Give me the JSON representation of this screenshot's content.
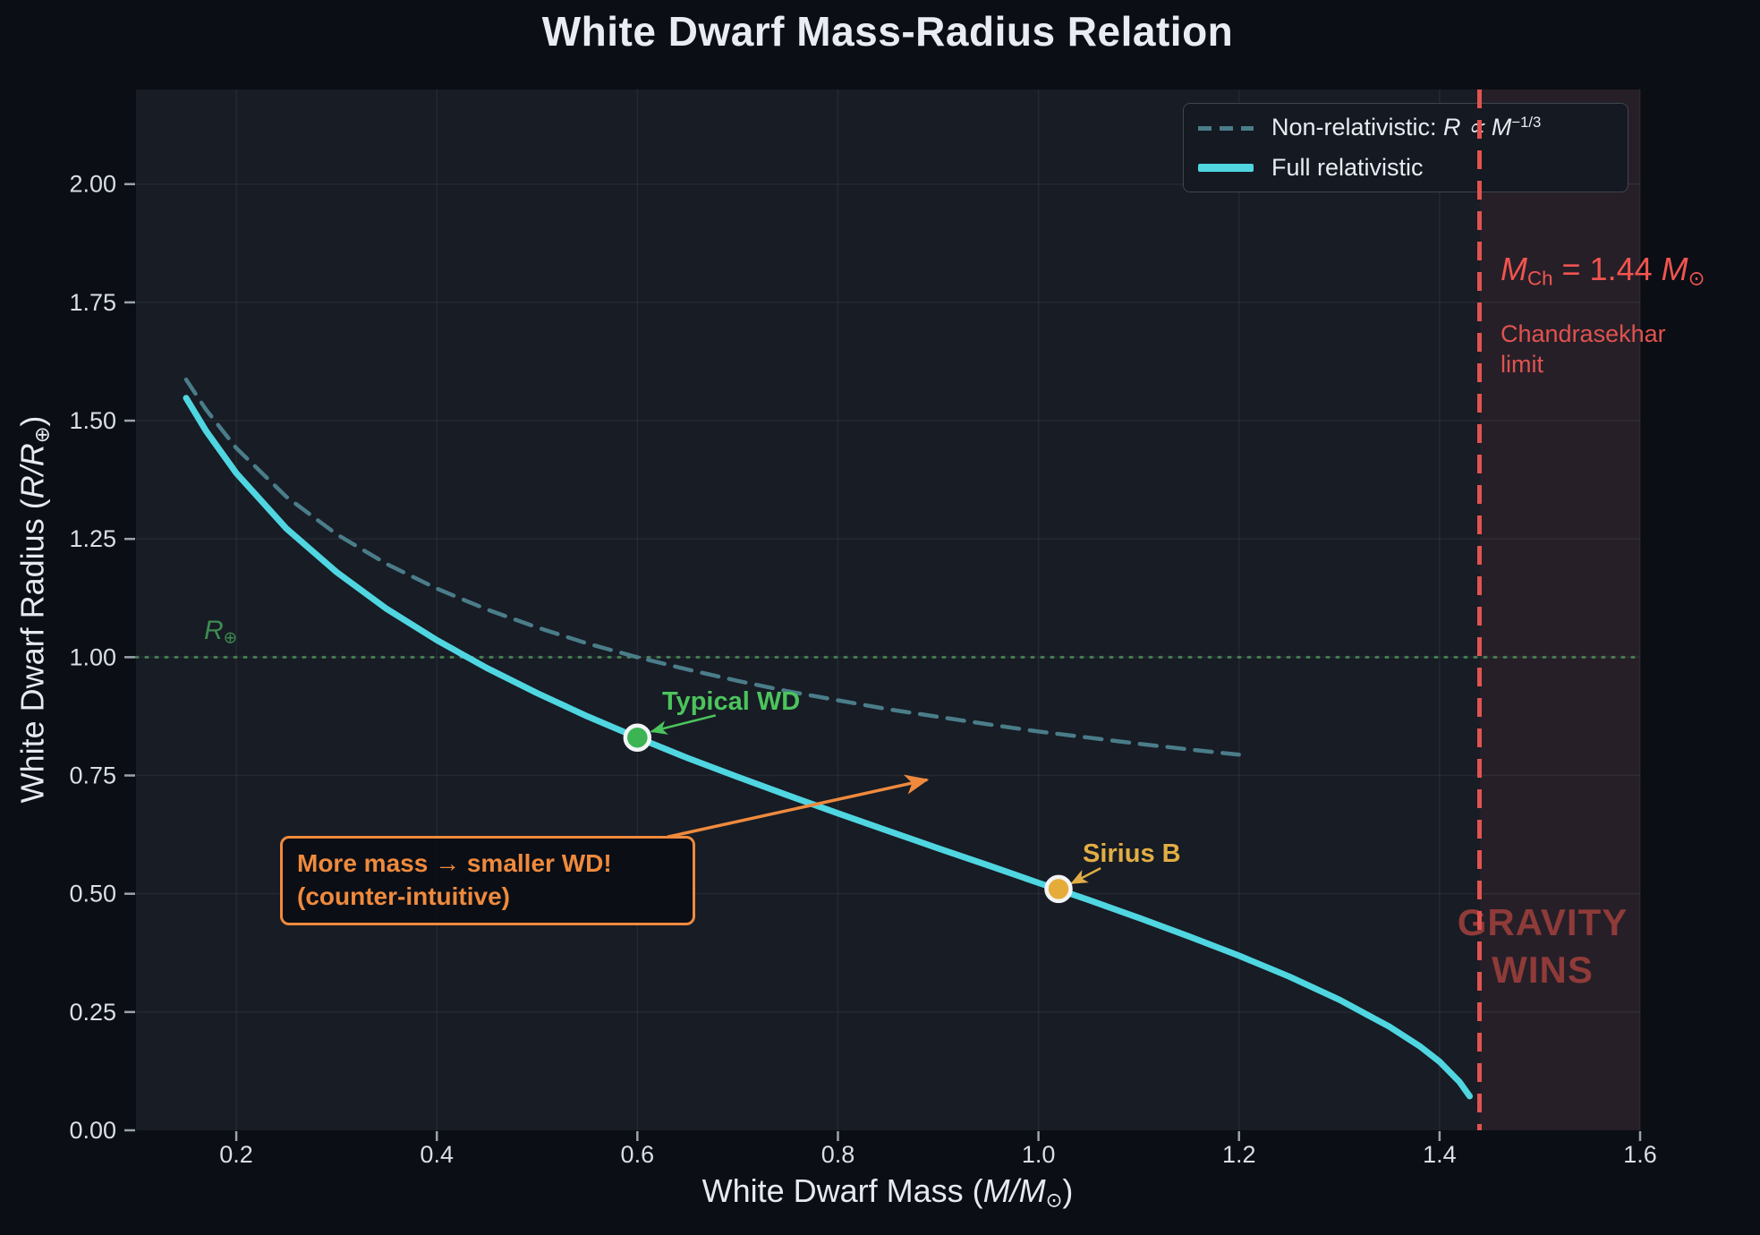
{
  "title": "White Dwarf Mass-Radius Relation",
  "axis": {
    "x_label": {
      "prefix": "White Dwarf Mass (",
      "math": "M/M",
      "sub": "⊙",
      "suffix": ")"
    },
    "y_label": {
      "prefix": "White Dwarf Radius (",
      "math": "R/R",
      "sub": "⊕",
      "suffix": ")"
    },
    "x_ticks": [
      "0.2",
      "0.4",
      "0.6",
      "0.8",
      "1.0",
      "1.2",
      "1.4",
      "1.6"
    ],
    "y_ticks": [
      "0.00",
      "0.25",
      "0.50",
      "0.75",
      "1.00",
      "1.25",
      "1.50",
      "1.75",
      "2.00"
    ]
  },
  "legend": {
    "nonrel": {
      "prefix": "Non-relativistic: ",
      "math": "R ∝ M",
      "sup": "−1/3"
    },
    "fullrel": "Full relativistic"
  },
  "annotations": {
    "mch": {
      "m1": "M",
      "sub1": "Ch",
      "eq": " = 1.44 ",
      "m2": "M",
      "sub2": "⊙"
    },
    "chandrasekhar": "Chandrasekhar limit",
    "gravity": "GRAVITY WINS",
    "earth_radius": {
      "math": "R",
      "sub": "⊕"
    },
    "typical_wd": "Typical WD",
    "sirius_b": "Sirius B",
    "note_line1": "More mass → smaller WD!",
    "note_line2": "(counter-intuitive)"
  },
  "colors": {
    "figure_bg": "#0b0e14",
    "plot_bg": "#171c25",
    "grid": "rgba(255,255,255,0.06)",
    "full_relativistic": "#4fd6e1",
    "non_relativistic": "#4a7d89",
    "chandrasekhar_red": "#e0534f",
    "gravity_red": "#8f3b39",
    "green": "#4cc45c",
    "earth_line_green": "#4c8f58",
    "orange": "#ef8a3d",
    "gold": "#e2ad44",
    "tick_text": "#d9dfe7"
  },
  "chart_data": {
    "type": "line",
    "title": "White Dwarf Mass-Radius Relation",
    "xlabel": "White Dwarf Mass (M/M⊙)",
    "ylabel": "White Dwarf Radius (R/R⊕)",
    "xlim": [
      0.1,
      1.6
    ],
    "ylim": [
      0,
      2.2
    ],
    "x_tick_values": [
      0.2,
      0.4,
      0.6,
      0.8,
      1.0,
      1.2,
      1.4,
      1.6
    ],
    "y_tick_values": [
      0,
      0.25,
      0.5,
      0.75,
      1.0,
      1.25,
      1.5,
      1.75,
      2.0
    ],
    "grid": true,
    "legend_position": "upper right",
    "series": [
      {
        "name": "Non-relativistic: R ∝ M^(−1/3)",
        "style": "dashed",
        "color": "#4a7d89",
        "width": 4.5,
        "x": [
          0.15,
          0.17,
          0.2,
          0.25,
          0.3,
          0.35,
          0.4,
          0.45,
          0.5,
          0.55,
          0.6,
          0.65,
          0.7,
          0.75,
          0.8,
          0.85,
          0.9,
          0.95,
          1.0,
          1.05,
          1.1,
          1.15,
          1.2
        ],
        "y": [
          1.587,
          1.523,
          1.442,
          1.339,
          1.26,
          1.197,
          1.145,
          1.101,
          1.063,
          1.029,
          1.0,
          0.974,
          0.95,
          0.928,
          0.909,
          0.89,
          0.874,
          0.858,
          0.843,
          0.83,
          0.817,
          0.805,
          0.794
        ]
      },
      {
        "name": "Full relativistic",
        "style": "solid",
        "color": "#4fd6e1",
        "width": 7,
        "x": [
          0.15,
          0.17,
          0.2,
          0.25,
          0.3,
          0.35,
          0.4,
          0.45,
          0.5,
          0.55,
          0.6,
          0.65,
          0.7,
          0.75,
          0.8,
          0.85,
          0.9,
          0.95,
          1.0,
          1.05,
          1.1,
          1.15,
          1.2,
          1.25,
          1.3,
          1.35,
          1.38,
          1.4,
          1.42,
          1.43
        ],
        "y": [
          1.548,
          1.478,
          1.389,
          1.272,
          1.18,
          1.102,
          1.036,
          0.977,
          0.924,
          0.875,
          0.83,
          0.787,
          0.747,
          0.708,
          0.67,
          0.633,
          0.596,
          0.56,
          0.523,
          0.487,
          0.449,
          0.41,
          0.369,
          0.325,
          0.276,
          0.219,
          0.178,
          0.145,
          0.102,
          0.072
        ]
      }
    ],
    "points": [
      {
        "name": "Typical WD",
        "x": 0.6,
        "y": 0.83,
        "color": "#3cb454"
      },
      {
        "name": "Sirius B",
        "x": 1.02,
        "y": 0.51,
        "color": "#e6ac3a"
      }
    ],
    "vline": {
      "x": 1.44,
      "label": "M_Ch = 1.44 M⊙",
      "sublabel": "Chandrasekhar limit",
      "color": "#e0534f"
    },
    "hline": {
      "y": 1.0,
      "label": "R⊕",
      "color": "#4c8f58"
    },
    "shaded_region": {
      "x0": 1.44,
      "x1": 1.6,
      "color": "rgba(224,83,79,0.075)",
      "label": "GRAVITY WINS"
    },
    "arrows": [
      {
        "name": "note-arrow",
        "from": [
          0.63,
          0.62
        ],
        "to": [
          0.889,
          0.741
        ],
        "color": "#ef8a3d",
        "width": 3.5
      },
      {
        "name": "typical-arrow",
        "from": [
          0.678,
          0.877
        ],
        "to": [
          0.614,
          0.843
        ],
        "color": "#4cc45c",
        "width": 2.5
      },
      {
        "name": "sirius-arrow",
        "from": [
          1.062,
          0.554
        ],
        "to": [
          1.033,
          0.522
        ],
        "color": "#e2ad44",
        "width": 2.5
      }
    ]
  }
}
